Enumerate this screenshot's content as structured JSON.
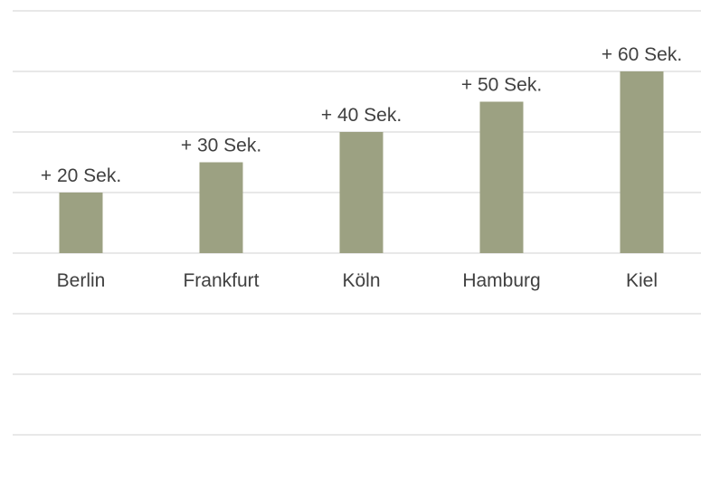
{
  "chart_data": {
    "type": "bar",
    "categories": [
      "Berlin",
      "Frankfurt",
      "Köln",
      "Hamburg",
      "Kiel"
    ],
    "values": [
      20,
      30,
      40,
      50,
      60
    ],
    "data_labels": [
      "+ 20 Sek.",
      "+ 30 Sek.",
      "+ 40 Sek.",
      "+ 50 Sek.",
      "+ 60 Sek."
    ],
    "title": "",
    "xlabel": "",
    "ylabel": "",
    "grid": true,
    "bar_color": "#9ca182",
    "grid_color": "#d9d9d9",
    "text_color": "#404040"
  }
}
